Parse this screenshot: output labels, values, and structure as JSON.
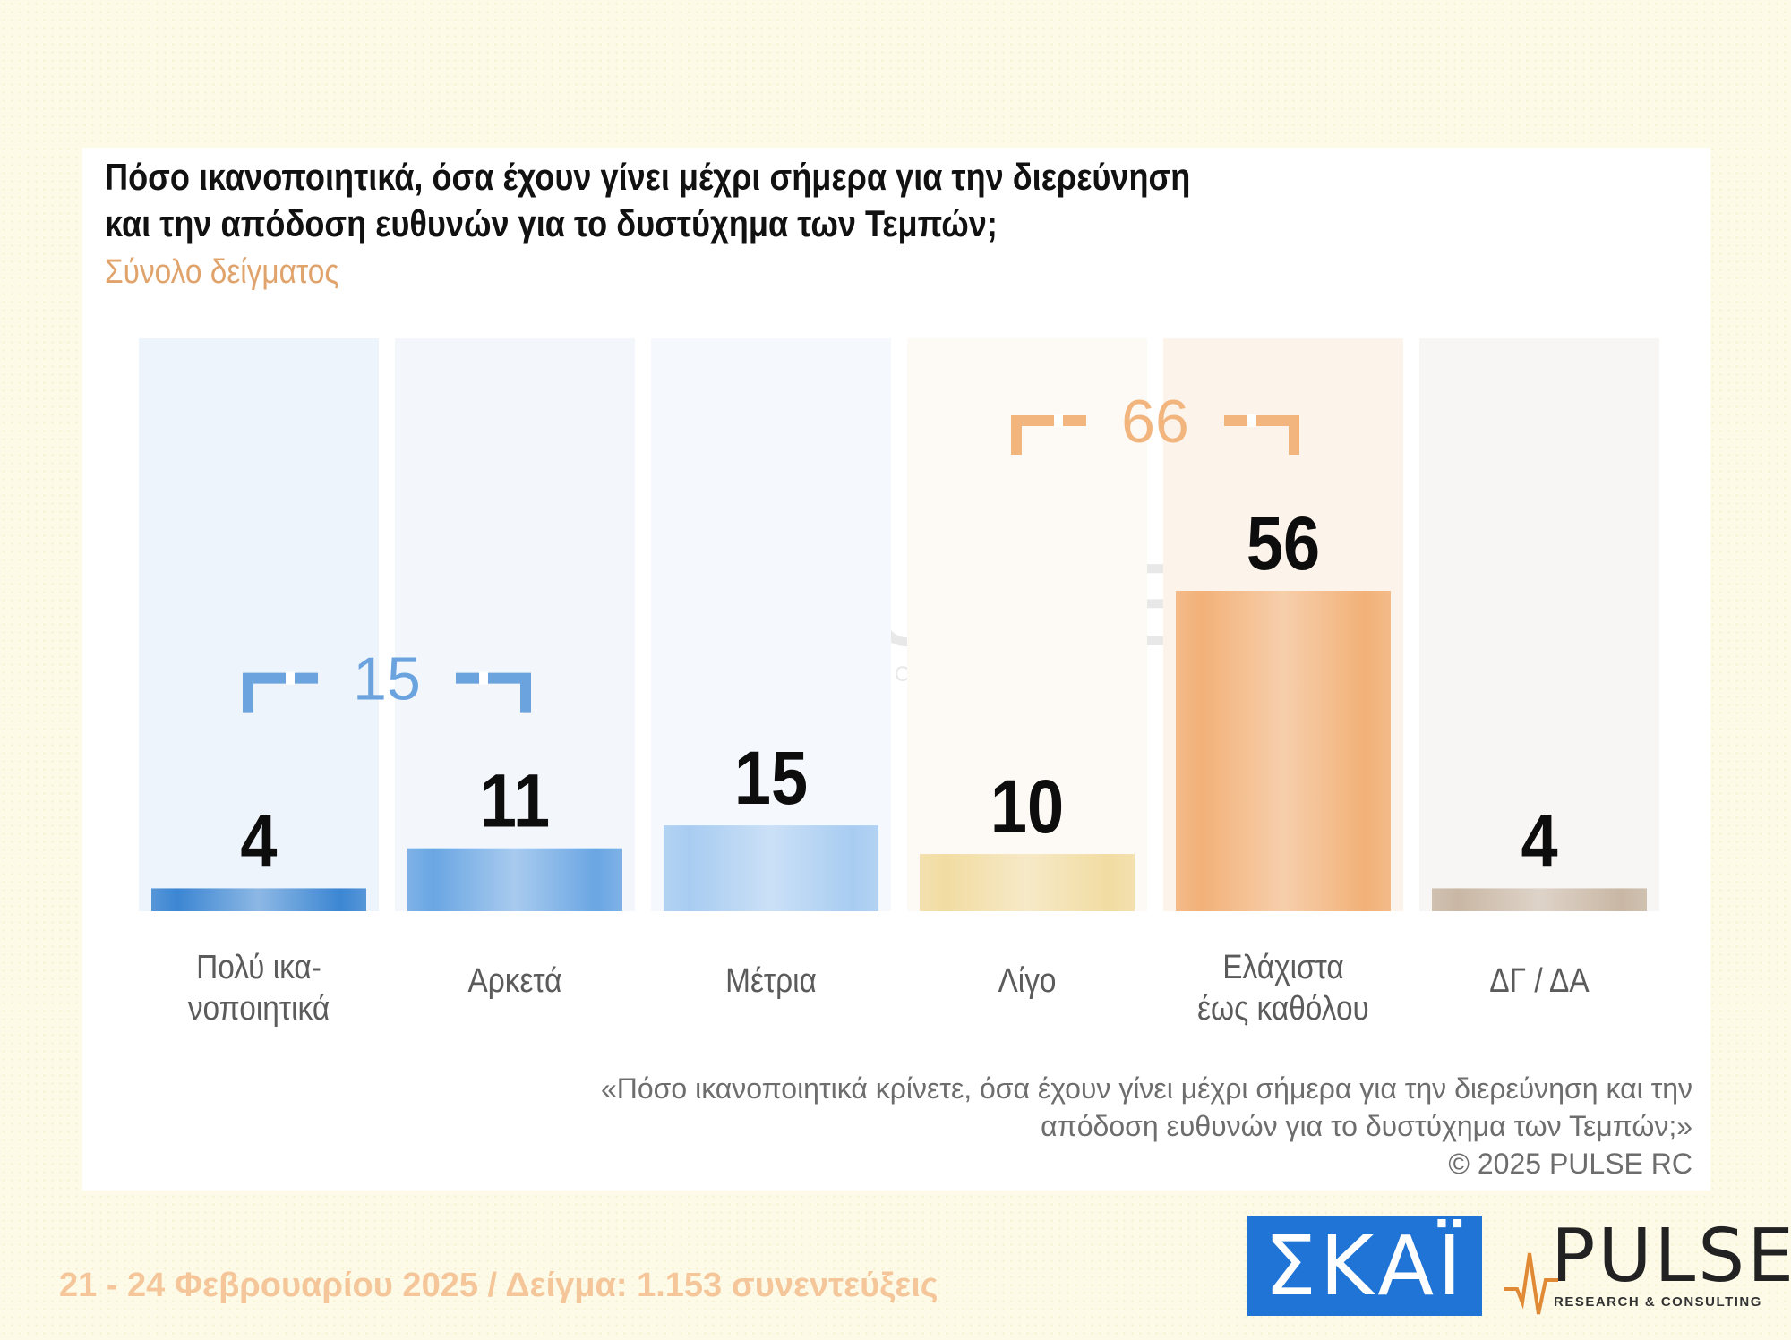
{
  "title_lines": [
    "Πόσο ικανοποιητικά, όσα έχουν γίνει μέχρι σήμερα για την διερεύνηση",
    "και την απόδοση ευθυνών για το δυστύχημα των Τεμπών;"
  ],
  "subtitle": "Σύνολο δείγματος",
  "chart_data": {
    "type": "bar",
    "title": "Πόσο ικανοποιητικά, όσα έχουν γίνει μέχρι σήμερα για την διερεύνηση και την απόδοση ευθυνών για το δυστύχημα των Τεμπών;",
    "subtitle": "Σύνολο δείγματος",
    "categories": [
      [
        "Πολύ ικα-",
        "νοποιητικά"
      ],
      [
        "Αρκετά"
      ],
      [
        "Μέτρια"
      ],
      [
        "Λίγο"
      ],
      [
        "Ελάχιστα",
        "έως καθόλου"
      ],
      [
        "ΔΓ / ΔΑ"
      ]
    ],
    "values": [
      4,
      11,
      15,
      10,
      56,
      4
    ],
    "ylim": [
      0,
      100
    ],
    "bar_colors": [
      "#3c86d2",
      "#6aa6e3",
      "#a8ccf1",
      "#f1dca2",
      "#f2b178",
      "#c9b7a4"
    ],
    "bg_colors": [
      "#eef4fb",
      "#f3f7fc",
      "#f5f9fd",
      "#fdf9f4",
      "#fcf3ea",
      "#f8f6f5"
    ],
    "brackets": [
      {
        "label": "15",
        "from": 0,
        "to": 1,
        "color": "#6ba3de"
      },
      {
        "label": "66",
        "from": 3,
        "to": 4,
        "color": "#f2b57e"
      }
    ]
  },
  "watermark": {
    "name": "PULSE",
    "sub": "RESEARCH & CONSULTING"
  },
  "footnote_lines": [
    "«Πόσο ικανοποιητικά κρίνετε, όσα έχουν γίνει μέχρι σήμερα για την διερεύνηση και την",
    "απόδοση ευθυνών για το δυστύχημα των Τεμπών;»",
    "©  2025  PULSE RC"
  ],
  "footer": "21 - 24 Φεβρουαρίου 2025  /  Δείγμα:  1.153 συνεντεύξεις",
  "logos": {
    "skai": "ΣΚΑΪ",
    "pulse": "PULSE",
    "pulse_sub": "RESEARCH & CONSULTING"
  }
}
